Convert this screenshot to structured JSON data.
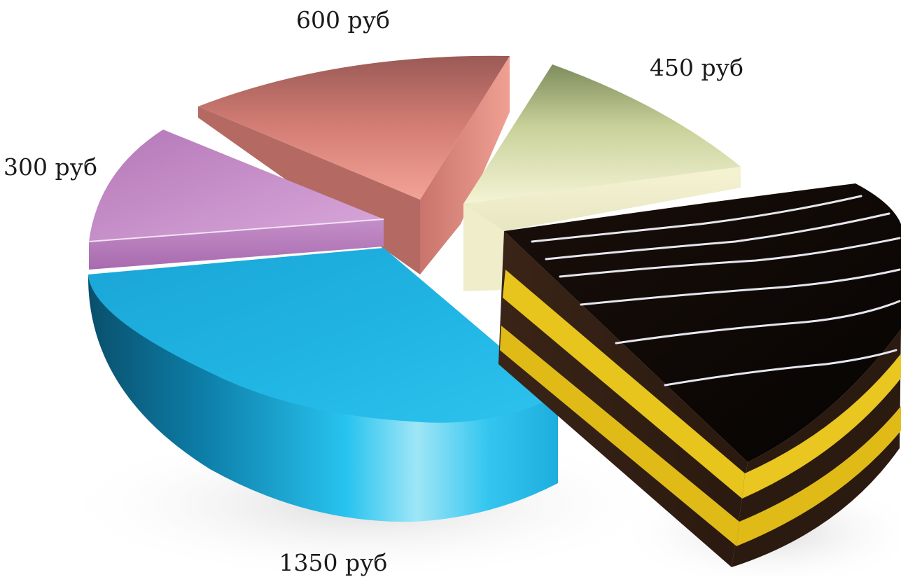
{
  "chart_data": {
    "type": "pie",
    "title": "",
    "slices": [
      {
        "label": "1350 руб",
        "value": 1350,
        "color": "#1fb3e0",
        "shape": "wedge"
      },
      {
        "label": "300 руб",
        "value": 300,
        "color": "#c489c6",
        "shape": "wedge"
      },
      {
        "label": "600 руб",
        "value": 600,
        "color": "#e08a82",
        "shape": "wedge"
      },
      {
        "label": "450 руб",
        "value": 450,
        "color": "#e6ebbe",
        "shape": "wedge"
      },
      {
        "label": "",
        "value": 0,
        "color": "#140c08",
        "shape": "cake"
      }
    ],
    "style": "3d-exploded"
  }
}
